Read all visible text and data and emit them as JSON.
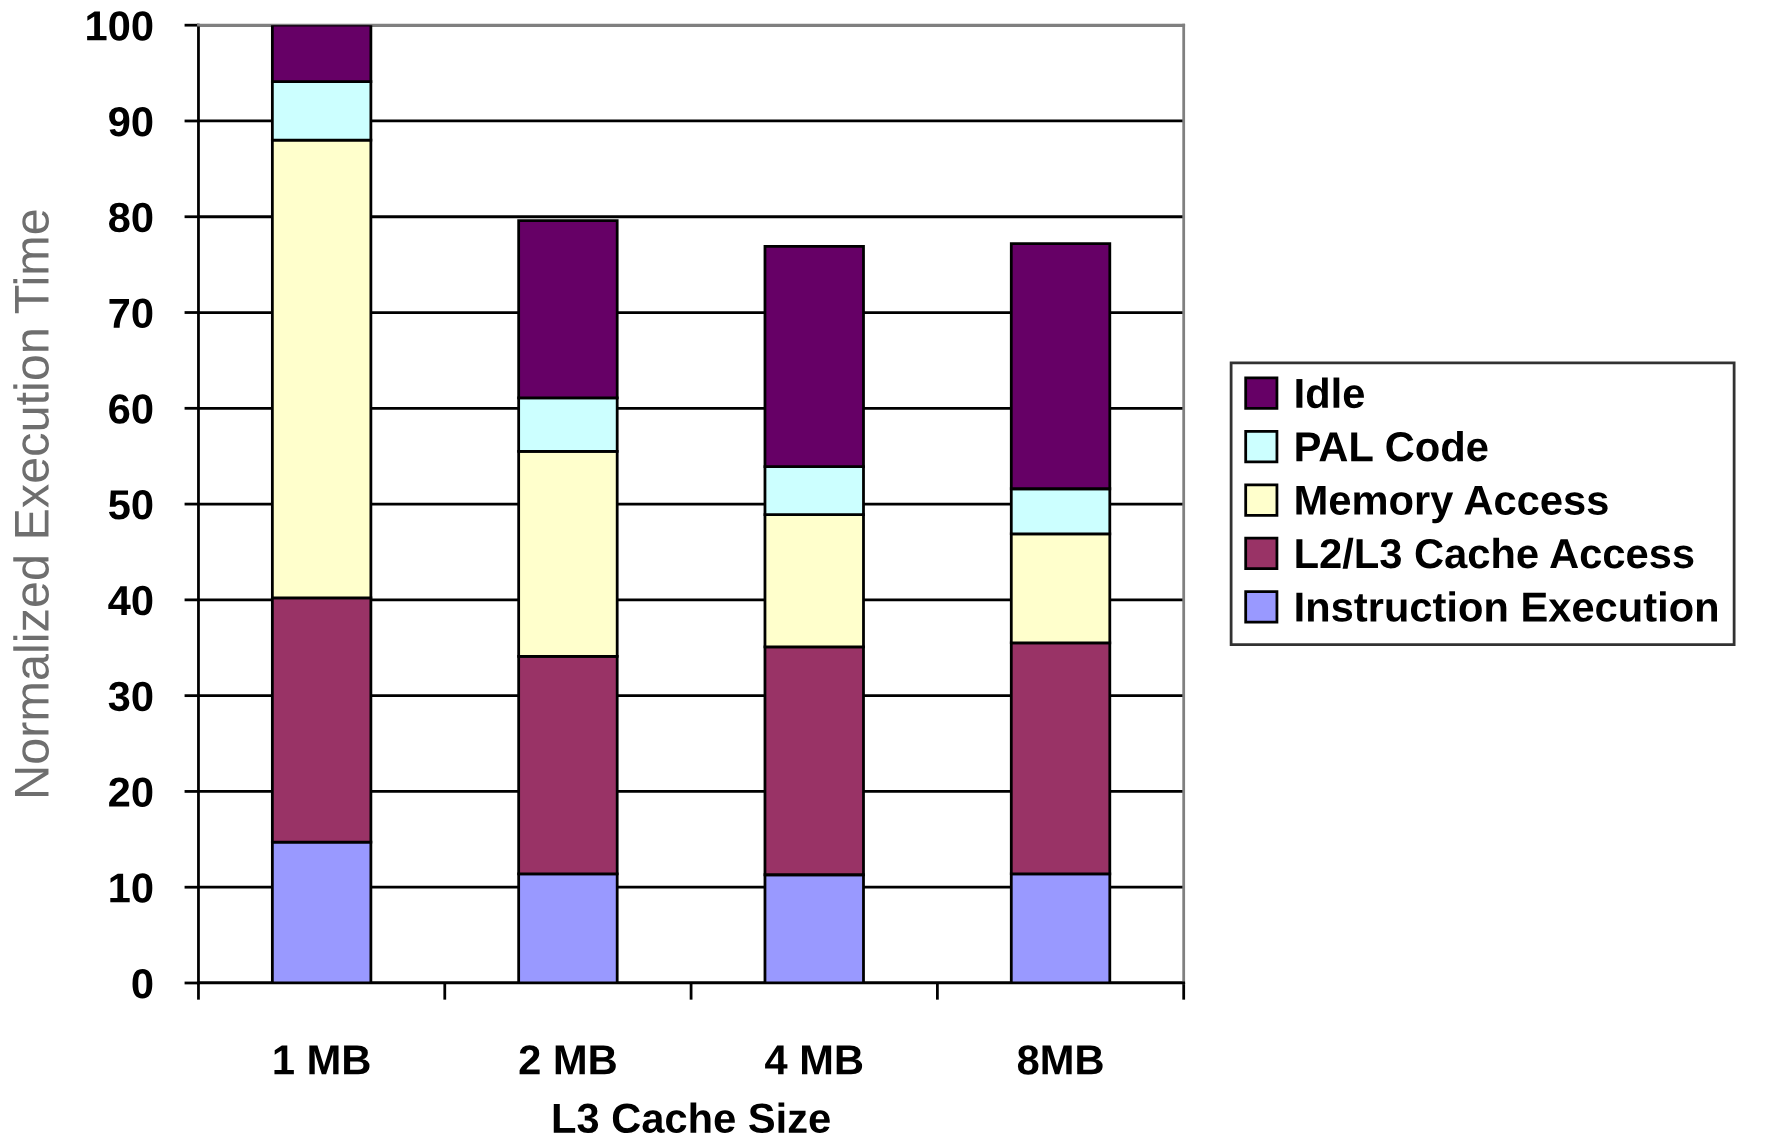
{
  "chart_data": {
    "type": "bar",
    "stacked": true,
    "xlabel": "L3 Cache Size",
    "ylabel": "Normalized Execution Time",
    "categories": [
      "1 MB",
      "2 MB",
      "4 MB",
      "8MB"
    ],
    "series": [
      {
        "name": "Instruction Execution",
        "color": "#9999ff",
        "values": [
          14.7,
          11.4,
          11.3,
          11.4
        ]
      },
      {
        "name": "L2/L3 Cache Access",
        "color": "#993366",
        "values": [
          25.5,
          22.7,
          23.8,
          24.1
        ]
      },
      {
        "name": "Memory Access",
        "color": "#ffffcc",
        "values": [
          47.8,
          21.4,
          13.8,
          11.4
        ]
      },
      {
        "name": "PAL Code",
        "color": "#ccffff",
        "values": [
          6.1,
          5.6,
          5.0,
          4.7
        ]
      },
      {
        "name": "Idle",
        "color": "#660066",
        "values": [
          5.9,
          18.5,
          23.0,
          25.6
        ]
      }
    ],
    "ylim": [
      0,
      100
    ],
    "yticks": [
      0,
      10,
      20,
      30,
      40,
      50,
      60,
      70,
      80,
      90,
      100
    ],
    "grid": "y",
    "legend": "right"
  }
}
